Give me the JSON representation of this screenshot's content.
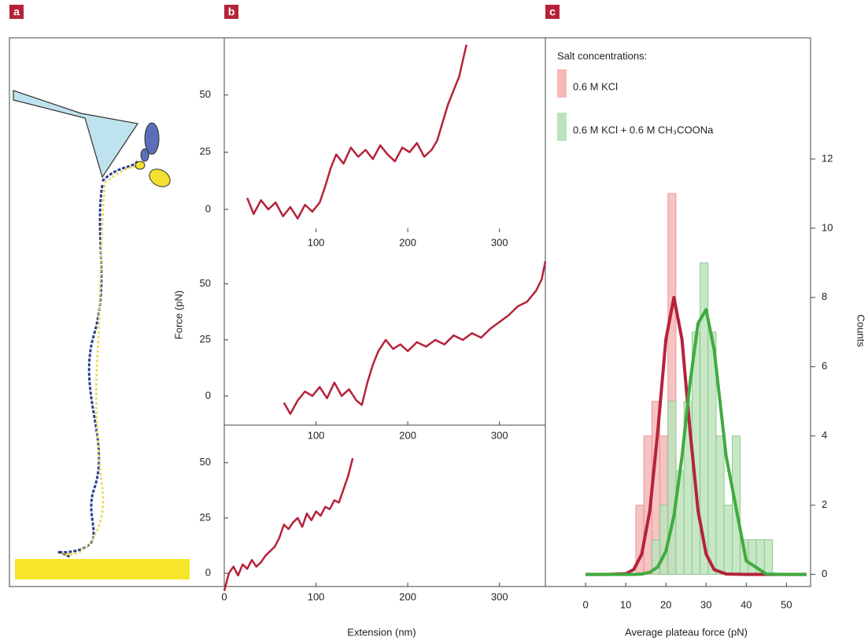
{
  "panel_labels": [
    "a",
    "b",
    "c"
  ],
  "chart_data": [
    {
      "type": "line",
      "color": "#b5223a",
      "x": [
        25,
        32,
        40,
        48,
        56,
        64,
        72,
        80,
        88,
        96,
        104,
        110,
        116,
        122,
        130,
        138,
        146,
        154,
        162,
        170,
        178,
        186,
        194,
        202,
        210,
        218,
        226,
        232,
        238,
        244,
        250,
        256,
        260,
        264
      ],
      "values": [
        5,
        -2,
        4,
        0,
        3,
        -3,
        1,
        -4,
        2,
        -1,
        3,
        10,
        18,
        24,
        20,
        27,
        23,
        26,
        22,
        28,
        24,
        21,
        27,
        25,
        29,
        23,
        26,
        30,
        38,
        46,
        52,
        58,
        65,
        72
      ],
      "xlim": [
        0,
        350
      ],
      "ylim": [
        -10,
        75
      ],
      "xticks": [
        100,
        200,
        300
      ],
      "yticks": [
        0,
        25,
        50
      ]
    },
    {
      "type": "line",
      "color": "#b5223a",
      "ylabel": "Force (pN)",
      "x": [
        65,
        72,
        80,
        88,
        96,
        104,
        112,
        120,
        128,
        136,
        144,
        150,
        156,
        162,
        168,
        176,
        184,
        192,
        200,
        210,
        220,
        230,
        240,
        250,
        260,
        270,
        280,
        290,
        300,
        310,
        320,
        330,
        340,
        346,
        350
      ],
      "values": [
        -3,
        -8,
        -2,
        2,
        0,
        4,
        -1,
        6,
        0,
        3,
        -2,
        -4,
        6,
        14,
        20,
        25,
        21,
        23,
        20,
        24,
        22,
        25,
        23,
        27,
        25,
        28,
        26,
        30,
        33,
        36,
        40,
        42,
        47,
        52,
        60
      ],
      "xlim": [
        0,
        350
      ],
      "ylim": [
        -13,
        73
      ],
      "xticks": [
        100,
        200,
        300
      ],
      "yticks": [
        0,
        25,
        50
      ]
    },
    {
      "type": "line",
      "color": "#b5223a",
      "xlabel": "Extension (nm)",
      "x": [
        0,
        5,
        10,
        15,
        20,
        25,
        30,
        35,
        40,
        45,
        50,
        55,
        60,
        65,
        70,
        75,
        80,
        85,
        90,
        95,
        100,
        105,
        110,
        115,
        120,
        125,
        130,
        135,
        140
      ],
      "values": [
        -8,
        0,
        3,
        -1,
        4,
        2,
        6,
        3,
        5,
        8,
        10,
        12,
        16,
        22,
        20,
        23,
        25,
        21,
        27,
        24,
        28,
        26,
        30,
        29,
        33,
        32,
        38,
        44,
        52
      ],
      "xlim": [
        0,
        350
      ],
      "ylim": [
        -6,
        67
      ],
      "xticks": [
        0,
        100,
        200,
        300
      ],
      "yticks": [
        0,
        25,
        50
      ]
    },
    {
      "type": "histogram",
      "xlabel": "Average plateau force (pN)",
      "ylabel": "Counts",
      "legend_title": "Salt concentrations:",
      "series": [
        {
          "name": "0.6 M KCl",
          "color": "#f4b9b9",
          "bins": [
            12.5,
            14.5,
            16.5,
            18.5,
            20.5,
            22.5
          ],
          "values": [
            2,
            4,
            5,
            4,
            11
          ]
        },
        {
          "name": "0.6 M KCl + 0.6 M CH₃COONa",
          "color": "#bde3bd",
          "bins": [
            16.5,
            18.5,
            20.5,
            22.5,
            24.5,
            26.5,
            28.5,
            30.5,
            32.5,
            34.5,
            36.5,
            38.5,
            40.5,
            42.5,
            44.5,
            46.5,
            48.5
          ],
          "values": [
            1,
            2,
            5,
            3,
            5,
            7,
            9,
            7,
            4,
            2,
            4,
            1,
            1,
            1,
            1,
            0
          ]
        }
      ],
      "fits": [
        {
          "color": "#b5223a",
          "x": [
            0,
            5,
            10,
            12,
            14,
            16,
            18,
            20,
            22,
            24,
            26,
            28,
            30,
            32,
            35,
            40,
            45,
            50,
            55
          ],
          "values": [
            0,
            0,
            0.02,
            0.14,
            0.59,
            1.84,
            4.16,
            6.79,
            8,
            6.79,
            4.16,
            1.84,
            0.59,
            0.14,
            0.01,
            0,
            0,
            0,
            0
          ]
        },
        {
          "color": "#3fab3f",
          "x": [
            0,
            5,
            10,
            12,
            14,
            16,
            18,
            20,
            22,
            24,
            26,
            28,
            30,
            32,
            35,
            40,
            45,
            50,
            55
          ],
          "values": [
            0,
            0,
            0,
            0,
            0.01,
            0.06,
            0.22,
            0.67,
            1.69,
            3.4,
            5.53,
            7.25,
            7.65,
            6.5,
            3.41,
            0.39,
            0.01,
            0,
            0
          ]
        }
      ],
      "xlim": [
        -10,
        56
      ],
      "ylim": [
        -0.35,
        15.5
      ],
      "xticks": [
        0,
        10,
        20,
        30,
        40,
        50
      ],
      "yticks": [
        0,
        2,
        4,
        6,
        8,
        10,
        12
      ]
    }
  ]
}
